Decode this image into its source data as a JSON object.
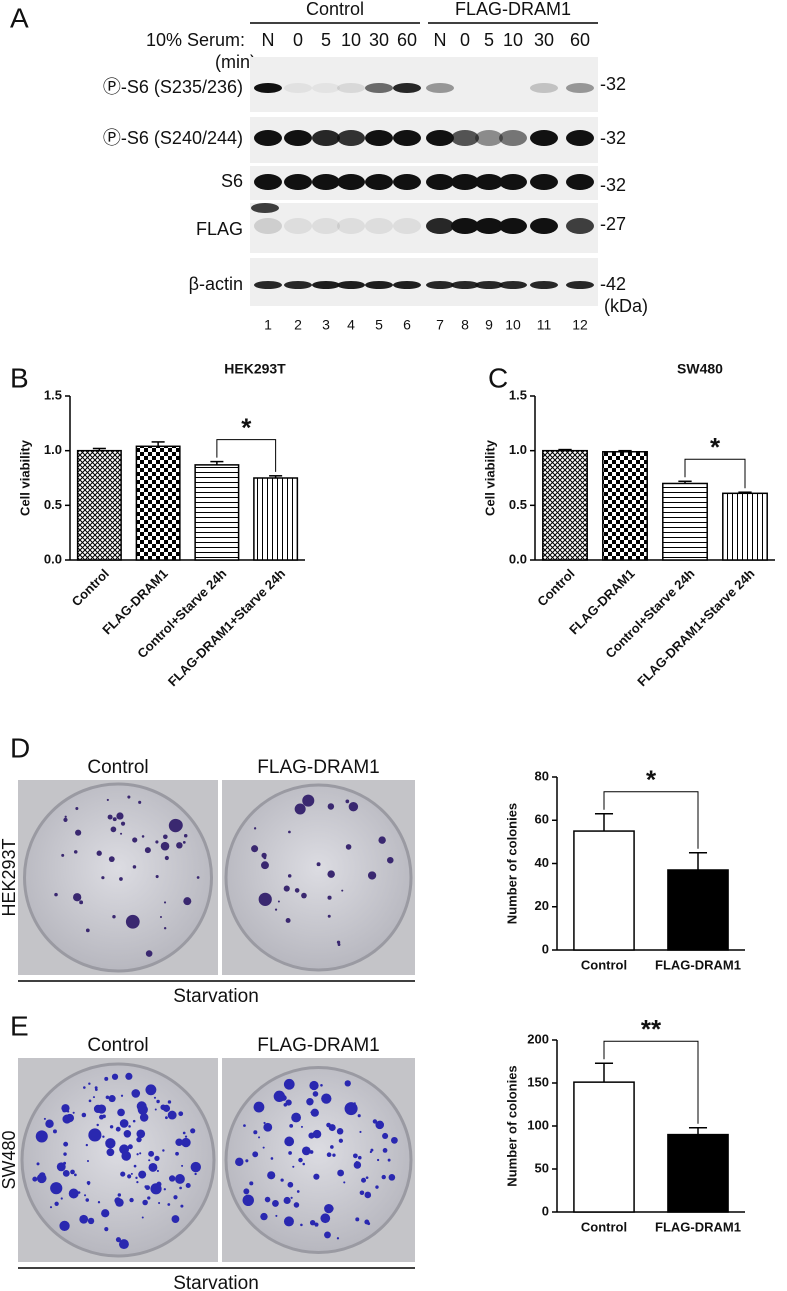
{
  "panel_a": {
    "letter": "A",
    "groups": [
      "Control",
      "FLAG-DRAM1"
    ],
    "serum_label": "10% Serum:",
    "min_label": "(min)",
    "lanes": [
      "N",
      "0",
      "5",
      "10",
      "30",
      "60",
      "N",
      "0",
      "5",
      "10",
      "30",
      "60"
    ],
    "rows": [
      {
        "label": "Ⓟ-S6 (S235/236)",
        "mw": "-32"
      },
      {
        "label": "Ⓟ-S6 (S240/244)",
        "mw": "-32"
      },
      {
        "label": "S6",
        "mw": "-32"
      },
      {
        "label": "FLAG",
        "mw": "-27"
      },
      {
        "label": "β-actin",
        "mw": "-42"
      }
    ],
    "kda": "(kDa)",
    "lane_numbers": [
      1,
      2,
      3,
      4,
      5,
      6,
      7,
      8,
      9,
      10,
      11,
      12
    ]
  },
  "chart_data": [
    {
      "type": "bar",
      "letter": "B",
      "title": "HEK293T",
      "y_label": "Cell viability",
      "categories": [
        "Control",
        "FLAG-DRAM1",
        "Control+Starve 24h",
        "FLAG-DRAM1+Starve 24h"
      ],
      "values": [
        1.0,
        1.04,
        0.87,
        0.75
      ],
      "errors": [
        0.02,
        0.04,
        0.03,
        0.02
      ],
      "patterns": [
        "crosshatch",
        "checker",
        "horizontal",
        "vertical"
      ],
      "ylim": [
        0,
        1.5
      ],
      "yticks": [
        {
          "value": 0,
          "label": "0.0"
        },
        0.5,
        {
          "value": 1,
          "label": "1.0"
        },
        1.5
      ],
      "significance": "*",
      "bracket": [
        2,
        3
      ]
    },
    {
      "type": "bar",
      "letter": "C",
      "title": "SW480",
      "y_label": "Cell viability",
      "categories": [
        "Control",
        "FLAG-DRAM1",
        "Control+Starve 24h",
        "FLAG-DRAM1+Starve 24h"
      ],
      "values": [
        1.0,
        0.99,
        0.7,
        0.61
      ],
      "errors": [
        0.01,
        0.01,
        0.02,
        0.01
      ],
      "patterns": [
        "crosshatch",
        "checker",
        "horizontal",
        "vertical"
      ],
      "ylim": [
        0,
        1.5
      ],
      "yticks": [
        {
          "value": 0,
          "label": "0.0"
        },
        0.5,
        {
          "value": 1,
          "label": "1.0"
        },
        1.5
      ],
      "significance": "*",
      "bracket": [
        2,
        3
      ]
    },
    {
      "type": "bar",
      "y_label": "Number of colonies",
      "categories": [
        "Control",
        "FLAG-DRAM1"
      ],
      "values": [
        55,
        37
      ],
      "errors": [
        8,
        8
      ],
      "colors": [
        "#ffffff",
        "#000000"
      ],
      "ylim": [
        0,
        80
      ],
      "yticks": [
        0,
        20,
        40,
        60,
        80
      ],
      "significance": "*",
      "bracket": [
        0,
        1
      ]
    },
    {
      "type": "bar",
      "y_label": "Number of colonies",
      "categories": [
        "Control",
        "FLAG-DRAM1"
      ],
      "values": [
        151,
        90
      ],
      "errors": [
        22,
        8
      ],
      "colors": [
        "#ffffff",
        "#000000"
      ],
      "ylim": [
        0,
        200
      ],
      "yticks": [
        0,
        50,
        100,
        150,
        200
      ],
      "significance": "**",
      "bracket": [
        0,
        1
      ]
    }
  ],
  "panel_d": {
    "letter": "D",
    "image_labels": [
      "Control",
      "FLAG-DRAM1"
    ],
    "cell_line": "HEK293T",
    "condition": "Starvation"
  },
  "panel_e": {
    "letter": "E",
    "image_labels": [
      "Control",
      "FLAG-DRAM1"
    ],
    "cell_line": "SW480",
    "condition": "Starvation"
  }
}
